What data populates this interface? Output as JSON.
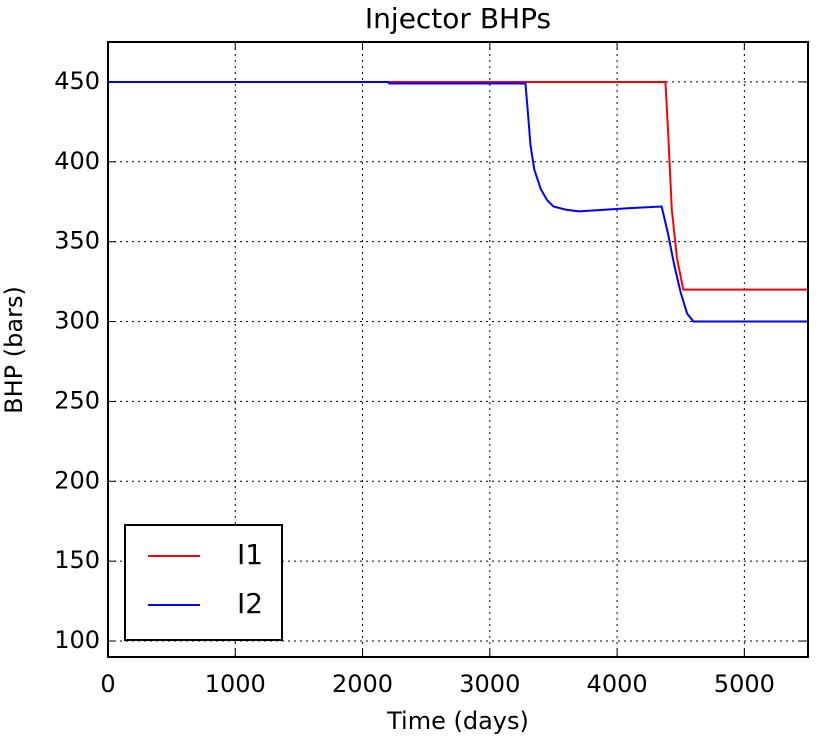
{
  "chart_data": {
    "type": "line",
    "title": "Injector BHPs",
    "x_label": "Time (days)",
    "y_label": "BHP (bars)",
    "xlim": [
      0,
      5500
    ],
    "xticks": [
      0,
      1000,
      2000,
      3000,
      4000,
      5000
    ],
    "ylim": [
      90,
      475
    ],
    "yticks": [
      100,
      150,
      200,
      250,
      300,
      350,
      400,
      450
    ],
    "grid": true,
    "legend": "lower left",
    "series": [
      {
        "name": "I1",
        "color": "#ff0000",
        "x": [
          0,
          2200,
          4380,
          4400,
          4430,
          4470,
          4520,
          5500
        ],
        "values": [
          450,
          450,
          450,
          420,
          370,
          340,
          320,
          320
        ]
      },
      {
        "name": "I2",
        "color": "#0000ff",
        "x": [
          0,
          2200,
          2210,
          3280,
          3300,
          3320,
          3350,
          3400,
          3450,
          3500,
          3600,
          3700,
          3900,
          4100,
          4350,
          4400,
          4450,
          4500,
          4550,
          4600,
          5500
        ],
        "values": [
          450,
          450,
          449,
          449,
          430,
          410,
          395,
          383,
          376,
          372,
          370,
          369,
          370,
          371,
          372,
          355,
          335,
          318,
          305,
          300,
          300
        ]
      }
    ]
  }
}
